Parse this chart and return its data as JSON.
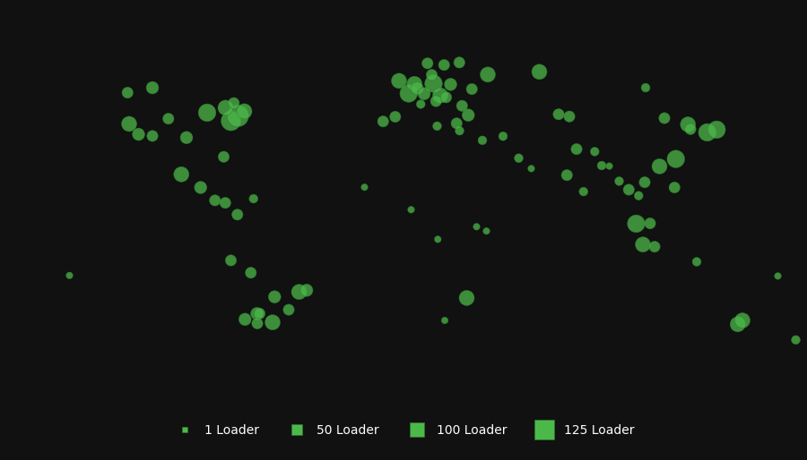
{
  "background_color": "#111111",
  "land_color": "#e0e0e0",
  "ocean_color": "#111111",
  "border_color": "#b0b0b0",
  "circle_color": "#4db84a",
  "circle_edge_color": "#2d7a2d",
  "circle_alpha": 0.75,
  "legend_labels": [
    "1 Loader",
    "50 Loader",
    "100 Loader",
    "125 Loader"
  ],
  "legend_sizes": [
    30,
    120,
    300,
    500
  ],
  "legend_marker_sizes": [
    4,
    8,
    12,
    16
  ],
  "fig_width": 9.0,
  "fig_height": 5.14,
  "map_extent": [
    -180,
    180,
    -63,
    83
  ],
  "points": [
    {
      "lon": -122.4,
      "lat": 37.8,
      "size": 150
    },
    {
      "lon": -118.2,
      "lat": 34.0,
      "size": 100
    },
    {
      "lon": -104.9,
      "lat": 39.7,
      "size": 80
    },
    {
      "lon": -87.6,
      "lat": 41.9,
      "size": 200
    },
    {
      "lon": -77.0,
      "lat": 38.9,
      "size": 250
    },
    {
      "lon": -73.9,
      "lat": 40.7,
      "size": 300
    },
    {
      "lon": -71.0,
      "lat": 42.4,
      "size": 150
    },
    {
      "lon": -79.4,
      "lat": 43.7,
      "size": 150
    },
    {
      "lon": -75.7,
      "lat": 45.4,
      "size": 80
    },
    {
      "lon": -96.8,
      "lat": 32.8,
      "size": 100
    },
    {
      "lon": -112.0,
      "lat": 33.4,
      "size": 80
    },
    {
      "lon": -80.2,
      "lat": 25.8,
      "size": 80
    },
    {
      "lon": -90.5,
      "lat": 14.6,
      "size": 100
    },
    {
      "lon": -84.1,
      "lat": 9.9,
      "size": 80
    },
    {
      "lon": -99.1,
      "lat": 19.4,
      "size": 150
    },
    {
      "lon": -79.5,
      "lat": 9.0,
      "size": 80
    },
    {
      "lon": -66.9,
      "lat": 10.5,
      "size": 50
    },
    {
      "lon": -74.1,
      "lat": 4.7,
      "size": 80
    },
    {
      "lon": -46.6,
      "lat": -23.5,
      "size": 150
    },
    {
      "lon": -43.2,
      "lat": -22.9,
      "size": 100
    },
    {
      "lon": -51.2,
      "lat": -30.0,
      "size": 80
    },
    {
      "lon": -58.4,
      "lat": -34.6,
      "size": 150
    },
    {
      "lon": -65.4,
      "lat": -31.4,
      "size": 100
    },
    {
      "lon": -57.5,
      "lat": -25.3,
      "size": 100
    },
    {
      "lon": -68.1,
      "lat": -16.5,
      "size": 80
    },
    {
      "lon": -77.0,
      "lat": -12.0,
      "size": 80
    },
    {
      "lon": -70.7,
      "lat": -33.5,
      "size": 100
    },
    {
      "lon": -64.2,
      "lat": -31.4,
      "size": 80
    },
    {
      "lon": -65.2,
      "lat": -35.0,
      "size": 80
    },
    {
      "lon": -2.0,
      "lat": 53.5,
      "size": 150
    },
    {
      "lon": 2.3,
      "lat": 48.9,
      "size": 200
    },
    {
      "lon": 4.9,
      "lat": 52.4,
      "size": 150
    },
    {
      "lon": 13.4,
      "lat": 52.5,
      "size": 200
    },
    {
      "lon": 16.4,
      "lat": 48.2,
      "size": 150
    },
    {
      "lon": 14.5,
      "lat": 46.1,
      "size": 80
    },
    {
      "lon": 18.1,
      "lat": 59.3,
      "size": 80
    },
    {
      "lon": 10.7,
      "lat": 59.9,
      "size": 80
    },
    {
      "lon": 12.6,
      "lat": 55.7,
      "size": 80
    },
    {
      "lon": 24.9,
      "lat": 60.2,
      "size": 80
    },
    {
      "lon": 25.0,
      "lat": 35.3,
      "size": 50
    },
    {
      "lon": 28.9,
      "lat": 41.0,
      "size": 100
    },
    {
      "lon": 37.6,
      "lat": 55.8,
      "size": 150
    },
    {
      "lon": 30.5,
      "lat": 50.5,
      "size": 80
    },
    {
      "lon": 21.0,
      "lat": 52.2,
      "size": 100
    },
    {
      "lon": 19.0,
      "lat": 47.5,
      "size": 80
    },
    {
      "lon": 26.1,
      "lat": 44.4,
      "size": 80
    },
    {
      "lon": 15.0,
      "lat": 37.0,
      "size": 50
    },
    {
      "lon": 35.2,
      "lat": 31.8,
      "size": 50
    },
    {
      "lon": 44.4,
      "lat": 33.3,
      "size": 50
    },
    {
      "lon": 51.4,
      "lat": 25.3,
      "size": 50
    },
    {
      "lon": 57.0,
      "lat": 21.5,
      "size": 30
    },
    {
      "lon": 69.2,
      "lat": 41.3,
      "size": 80
    },
    {
      "lon": 72.9,
      "lat": 19.1,
      "size": 80
    },
    {
      "lon": 77.2,
      "lat": 28.6,
      "size": 80
    },
    {
      "lon": 80.3,
      "lat": 13.1,
      "size": 50
    },
    {
      "lon": 85.3,
      "lat": 27.7,
      "size": 50
    },
    {
      "lon": 88.4,
      "lat": 22.6,
      "size": 50
    },
    {
      "lon": 100.5,
      "lat": 13.8,
      "size": 80
    },
    {
      "lon": 103.8,
      "lat": 1.4,
      "size": 200
    },
    {
      "lon": 106.8,
      "lat": -6.2,
      "size": 150
    },
    {
      "lon": 107.6,
      "lat": 16.5,
      "size": 80
    },
    {
      "lon": 114.2,
      "lat": 22.3,
      "size": 150
    },
    {
      "lon": 121.5,
      "lat": 25.0,
      "size": 200
    },
    {
      "lon": 126.9,
      "lat": 37.6,
      "size": 150
    },
    {
      "lon": 135.5,
      "lat": 34.7,
      "size": 200
    },
    {
      "lon": 139.7,
      "lat": 35.7,
      "size": 200
    },
    {
      "lon": 120.9,
      "lat": 14.6,
      "size": 80
    },
    {
      "lon": 96.2,
      "lat": 16.9,
      "size": 50
    },
    {
      "lon": 104.9,
      "lat": 11.6,
      "size": 50
    },
    {
      "lon": 116.4,
      "lat": 39.9,
      "size": 80
    },
    {
      "lon": 91.8,
      "lat": 22.4,
      "size": 30
    },
    {
      "lon": 74.0,
      "lat": 40.5,
      "size": 80
    },
    {
      "lon": 37.0,
      "lat": -1.3,
      "size": 30
    },
    {
      "lon": 18.4,
      "lat": -33.9,
      "size": 30
    },
    {
      "lon": 28.2,
      "lat": -25.7,
      "size": 150
    },
    {
      "lon": 32.6,
      "lat": 0.3,
      "size": 30
    },
    {
      "lon": 3.4,
      "lat": 6.5,
      "size": 30
    },
    {
      "lon": -17.4,
      "lat": 14.7,
      "size": 30
    },
    {
      "lon": 15.3,
      "lat": -4.3,
      "size": 30
    },
    {
      "lon": 149.1,
      "lat": -35.3,
      "size": 150
    },
    {
      "lon": 151.2,
      "lat": -33.9,
      "size": 150
    },
    {
      "lon": 130.8,
      "lat": -12.5,
      "size": 50
    },
    {
      "lon": 175.0,
      "lat": -41.0,
      "size": 50
    },
    {
      "lon": 167.0,
      "lat": -17.7,
      "size": 30
    },
    {
      "lon": -149.0,
      "lat": -17.5,
      "size": 30
    },
    {
      "lon": 128.0,
      "lat": 35.9,
      "size": 80
    },
    {
      "lon": 112.0,
      "lat": -7.0,
      "size": 80
    },
    {
      "lon": 110.0,
      "lat": 1.5,
      "size": 80
    },
    {
      "lon": 6.1,
      "lat": 50.8,
      "size": 100
    },
    {
      "lon": 9.2,
      "lat": 48.8,
      "size": 100
    },
    {
      "lon": -9.1,
      "lat": 38.7,
      "size": 80
    },
    {
      "lon": 23.7,
      "lat": 38.0,
      "size": 80
    },
    {
      "lon": -3.7,
      "lat": 40.4,
      "size": 80
    },
    {
      "lon": 7.7,
      "lat": 45.0,
      "size": 50
    },
    {
      "lon": 60.6,
      "lat": 56.8,
      "size": 150
    },
    {
      "lon": 108.0,
      "lat": 51.0,
      "size": 50
    },
    {
      "lon": -112.0,
      "lat": 51.0,
      "size": 100
    },
    {
      "lon": -123.1,
      "lat": 49.2,
      "size": 80
    }
  ]
}
